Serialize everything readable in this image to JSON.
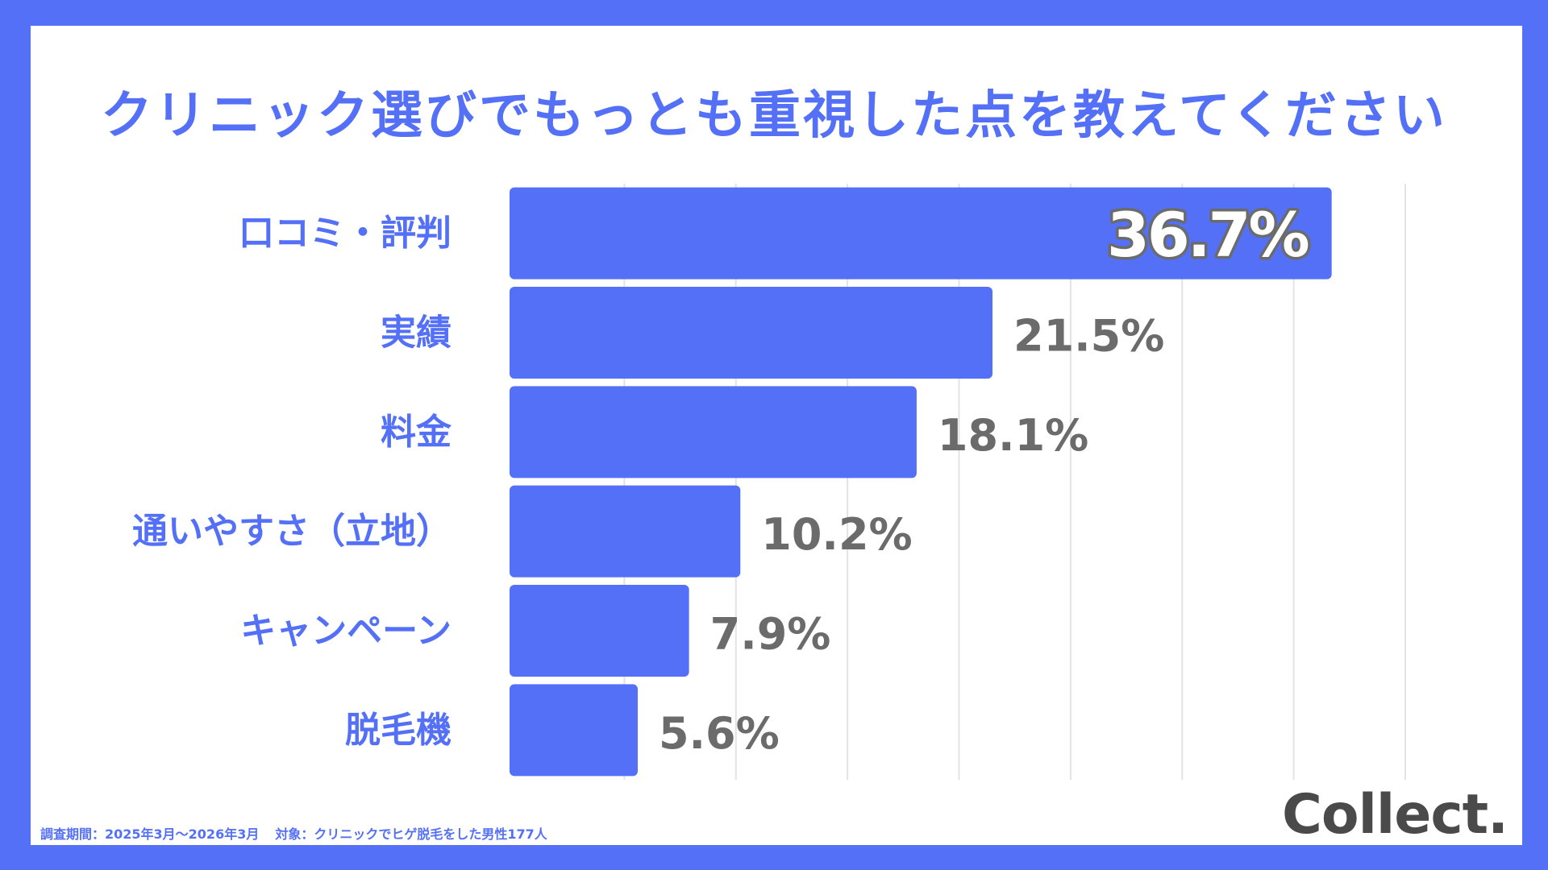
{
  "footer": {
    "survey_period": "調査期間：2025年3月〜2026年3月",
    "target": "対象：クリニックでヒゲ脱毛をした男性177人"
  },
  "logo": {
    "text": "Collect."
  },
  "colors": {
    "bar": "#5470f6",
    "background": "#5470f6",
    "value_text": "#6b6b6b",
    "grid": "#e3e3e3"
  },
  "chart_data": {
    "type": "bar",
    "orientation": "horizontal",
    "title": "クリニック選びでもっとも重視した点を教えてください",
    "categories": [
      "口コミ・評判",
      "実績",
      "料金",
      "通いやすさ（立地）",
      "キャンペーン",
      "脱毛機"
    ],
    "values": [
      36.7,
      21.5,
      18.1,
      10.2,
      7.9,
      5.6
    ],
    "value_labels": [
      "36.7%",
      "21.5%",
      "18.1%",
      "10.2%",
      "7.9%",
      "5.6%"
    ],
    "unit": "%",
    "xlim": [
      0,
      40
    ],
    "grid": true,
    "legend": "none"
  }
}
